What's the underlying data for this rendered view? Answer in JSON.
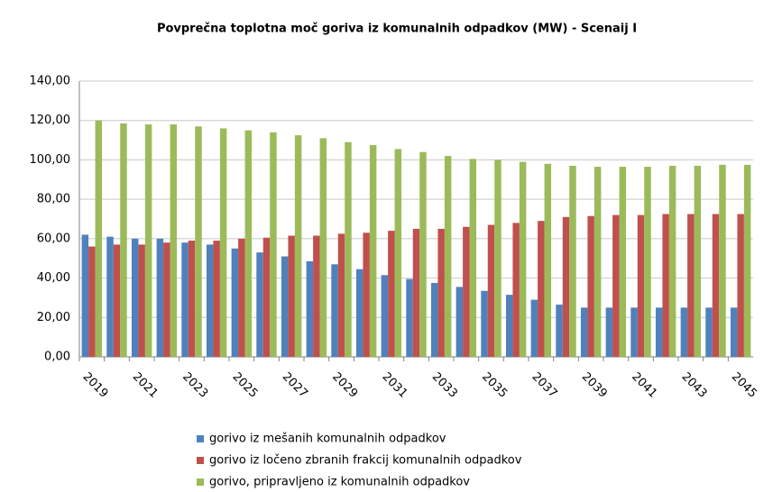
{
  "chart_data": {
    "type": "bar",
    "title": "Povprečna toplotna moč goriva iz komunalnih odpadkov  (MW) - Scenaij I",
    "categories": [
      "2019",
      null,
      "2021",
      null,
      "2023",
      null,
      "2025",
      null,
      "2027",
      null,
      "2029",
      null,
      "2031",
      null,
      "2033",
      null,
      "2035",
      null,
      "2037",
      null,
      "2039",
      null,
      "2041",
      null,
      "2043",
      null,
      "2045"
    ],
    "series": [
      {
        "name": "gorivo iz mešanih komunalnih odpadkov",
        "color": "#4f81bd",
        "values": [
          62,
          61,
          60,
          60,
          58,
          57,
          55,
          53,
          51,
          48.5,
          47,
          44.5,
          41.5,
          39.5,
          37.5,
          35.5,
          33.5,
          31.5,
          29,
          26.5,
          25,
          25,
          25,
          25,
          25,
          25,
          25
        ]
      },
      {
        "name": "gorivo iz ločeno zbranih frakcij komunalnih odpadkov",
        "color": "#c0504d",
        "values": [
          56,
          57,
          57,
          58,
          59,
          59,
          60,
          60.5,
          61.5,
          61.5,
          62.5,
          63,
          64,
          65,
          65,
          66,
          67,
          68,
          69,
          71,
          71.5,
          72,
          72,
          72.5,
          72.5,
          72.5,
          72.5
        ]
      },
      {
        "name": "gorivo, pripravljeno iz komunalnih odpadkov",
        "color": "#9bbb59",
        "values": [
          120,
          118.5,
          118,
          118,
          117,
          116,
          115,
          114,
          112.5,
          111,
          109,
          107.5,
          105.5,
          104,
          102,
          100.5,
          100,
          99,
          98,
          97,
          96.5,
          96.5,
          96.5,
          97,
          97,
          97.5,
          97.5
        ]
      }
    ],
    "ylim": [
      0,
      140
    ],
    "yticks": [
      {
        "value": 0,
        "label": "0,00"
      },
      {
        "value": 20,
        "label": "20,00"
      },
      {
        "value": 40,
        "label": "40,00"
      },
      {
        "value": 60,
        "label": "60,00"
      },
      {
        "value": 80,
        "label": "80,00"
      },
      {
        "value": 100,
        "label": "100,00"
      },
      {
        "value": 120,
        "label": "120,00"
      },
      {
        "value": 140,
        "label": "140,00"
      }
    ],
    "grid": true
  }
}
